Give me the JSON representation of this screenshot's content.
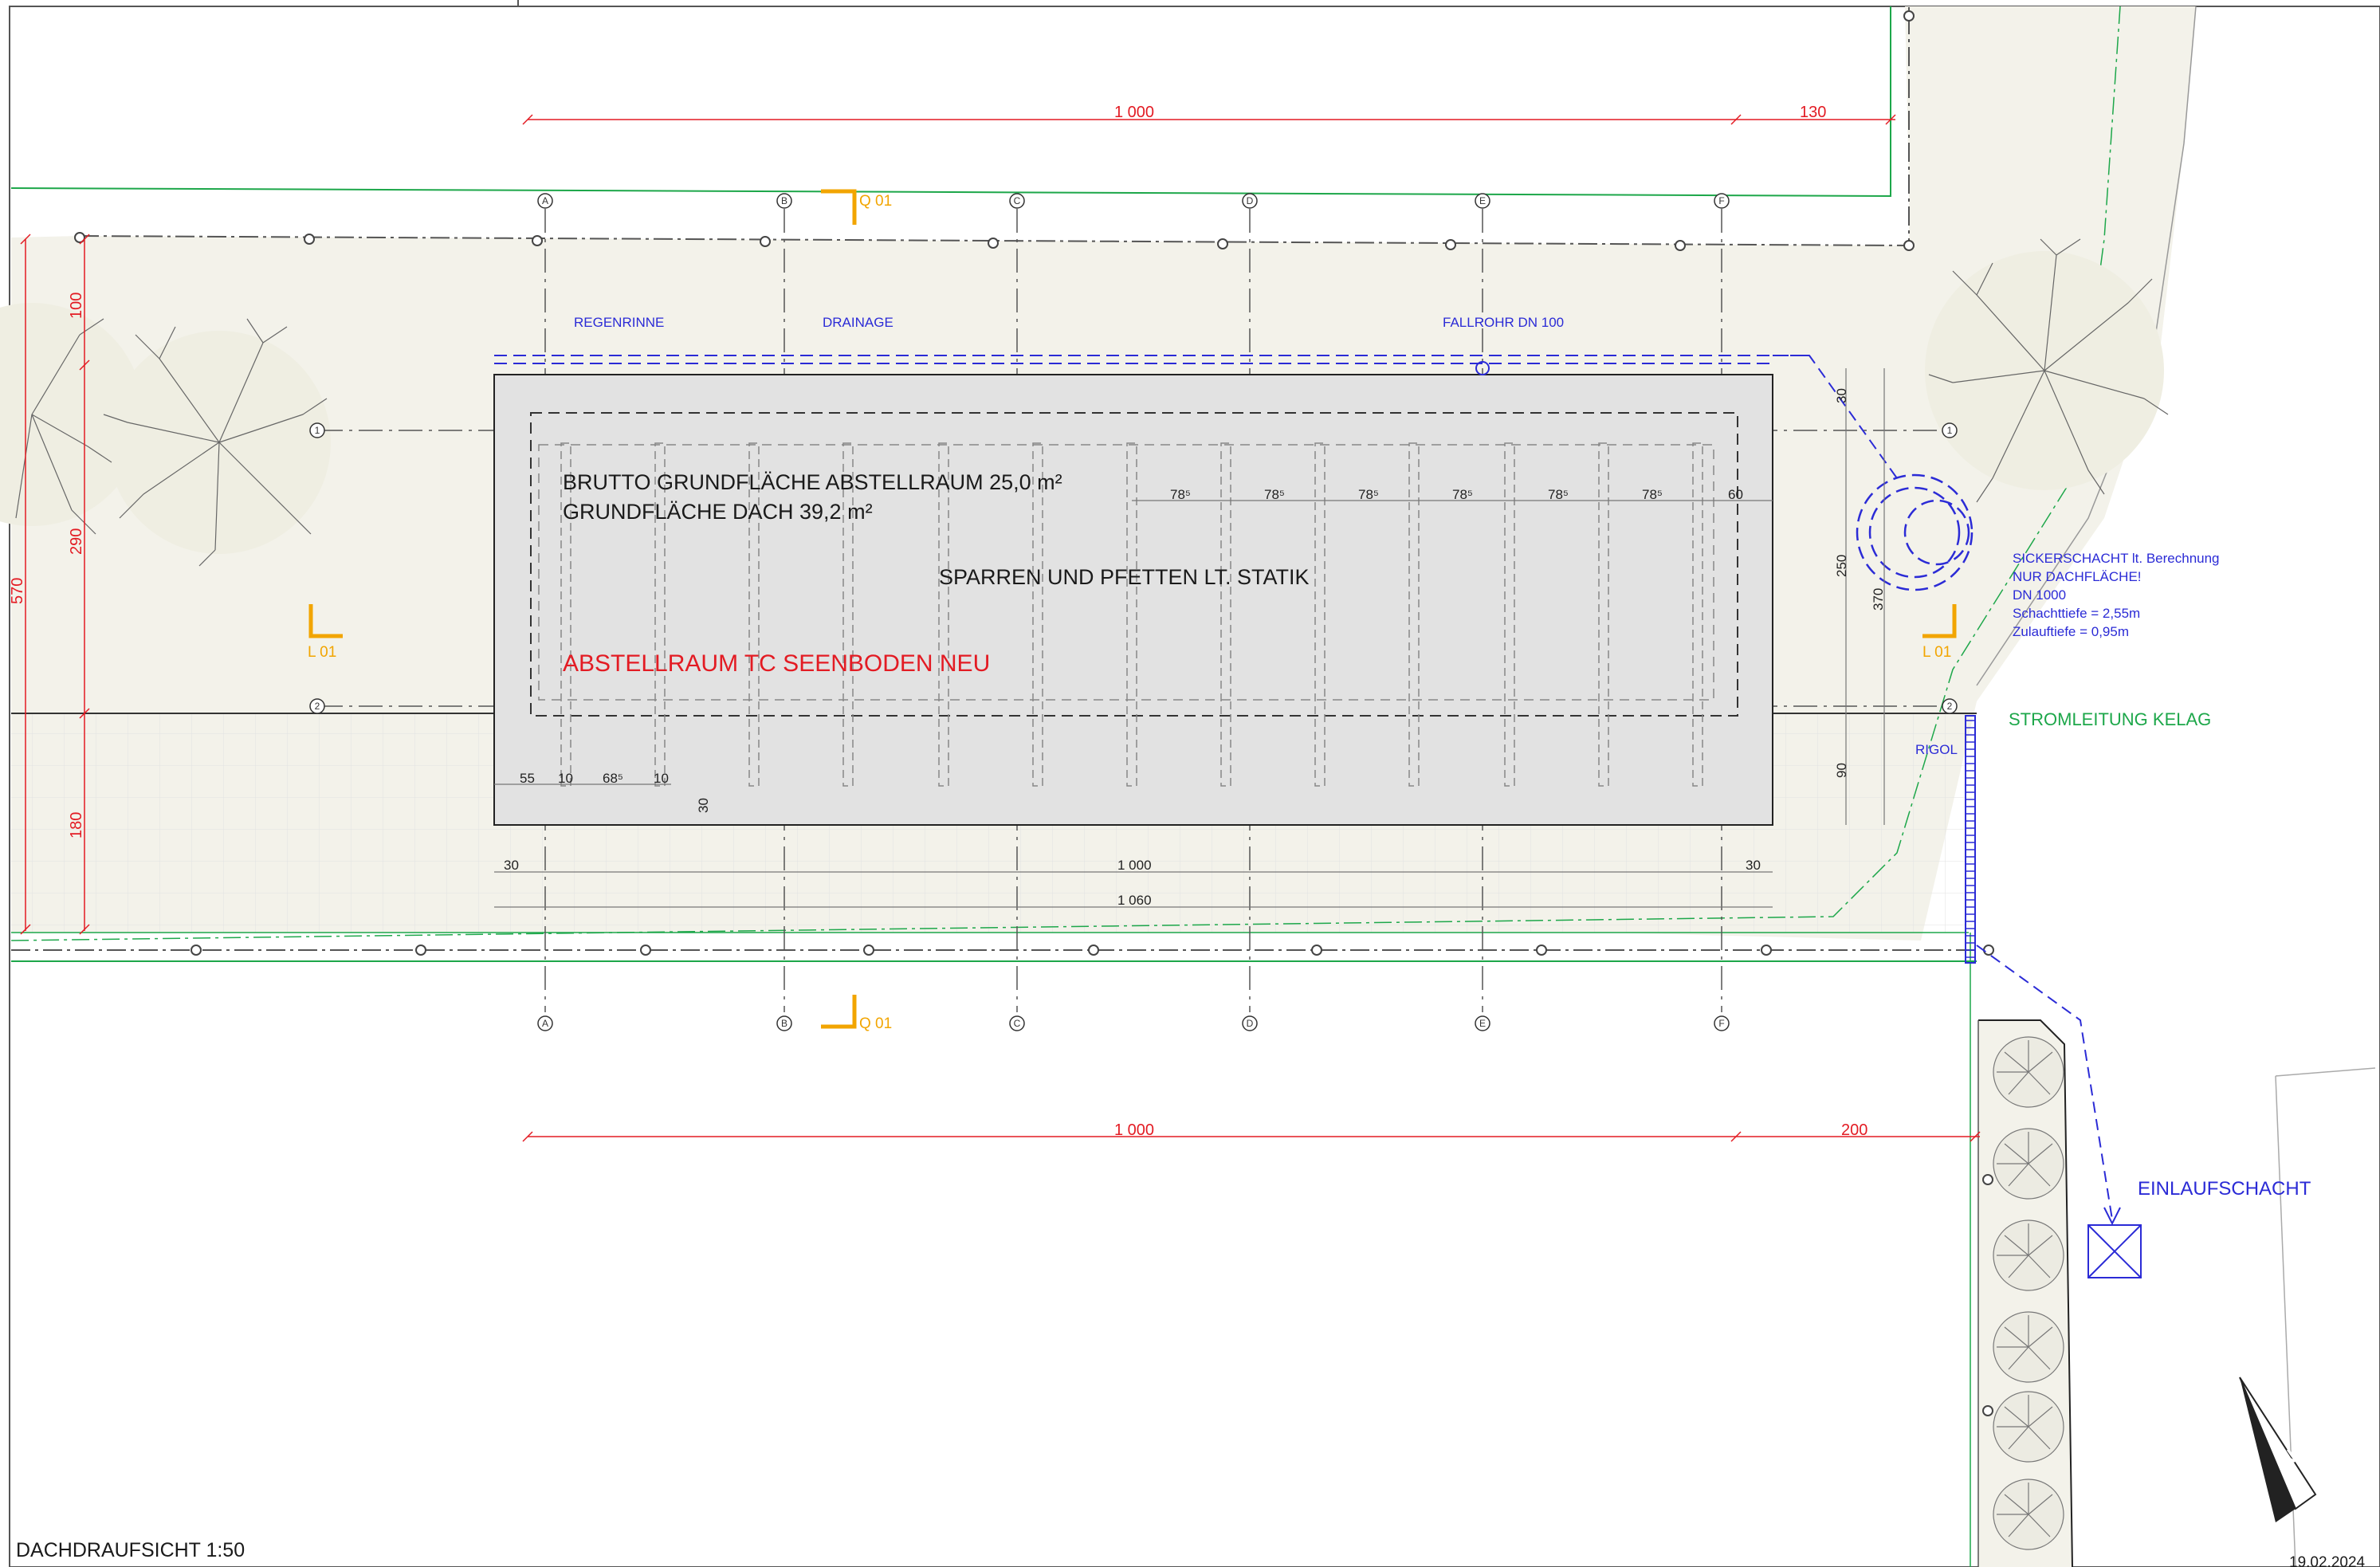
{
  "drawing": {
    "title": "DACHDRAUFSICHT 1:50",
    "date": "19.02.2024"
  },
  "building": {
    "area_gross": "BRUTTO GRUNDFLÄCHE ABSTELLRAUM 25,0 m²",
    "area_roof": "GRUNDFLÄCHE DACH 39,2 m²",
    "structure_note": "SPARREN UND PFETTEN LT. STATIK",
    "name": "ABSTELLRAUM TC SEENBODEN NEU"
  },
  "grid_axes": {
    "columns": [
      "A",
      "B",
      "C",
      "D",
      "E",
      "F"
    ],
    "rows": [
      "1",
      "2"
    ]
  },
  "section_marks": {
    "q_top": "Q 01",
    "q_bottom": "Q 01",
    "l_left": "L 01",
    "l_right": "L 01"
  },
  "notes": {
    "regenrinne": "REGENRINNE",
    "drainage": "DRAINAGE",
    "fallrohr": "FALLROHR DN 100",
    "sickerschacht": [
      "SICKERSCHACHT lt. Berechnung",
      "NUR DACHFLÄCHE!",
      "DN 1000",
      "Schachttiefe = 2,55m",
      "Zulauftiefe = 0,95m"
    ],
    "stromleitung": "STROMLEITUNG KELAG",
    "rigol": "RIGOL",
    "einlaufschacht": "EINLAUFSCHACHT"
  },
  "dimensions": {
    "top_main": "1 000",
    "top_extra": "130",
    "bottom_main": "1 000",
    "bottom_extra": "200",
    "under_roof_left": "30",
    "under_roof_mid": "1 000",
    "under_roof_right": "30",
    "under_roof_total": "1 060",
    "left_100": "100",
    "left_290": "290",
    "left_180": "180",
    "left_570": "570",
    "right_30": "30",
    "right_250": "250",
    "right_370": "370",
    "right_90": "90",
    "rafter_spacing": [
      "78⁵",
      "78⁵",
      "78⁵",
      "78⁵",
      "78⁵",
      "78⁵"
    ],
    "rafter_end": "60",
    "detail_55": "55",
    "detail_10a": "10",
    "detail_685": "68⁵",
    "detail_10b": "10",
    "detail_30": "30"
  },
  "colors": {
    "dimension_red": "#e31b23",
    "drainage_blue": "#2b2bd6",
    "power_green": "#1da74a",
    "section_orange": "#f2a500",
    "roof_fill": "#e2e2e2",
    "ground_fill": "#f3f2ea"
  }
}
